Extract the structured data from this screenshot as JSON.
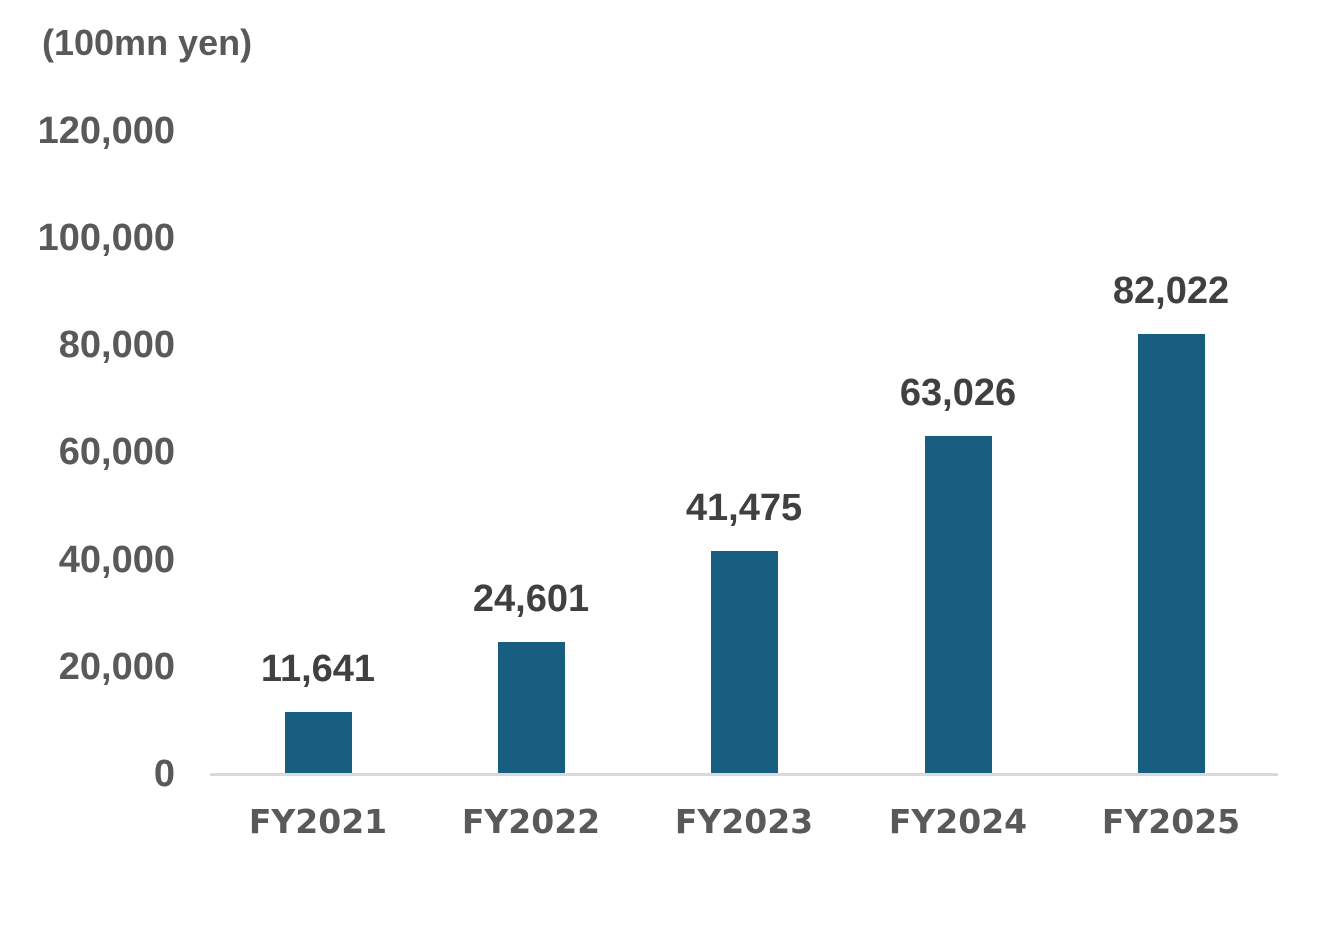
{
  "chart_data": {
    "type": "bar",
    "title": "",
    "unit_label": "(100mn yen)",
    "xlabel": "",
    "ylabel": "(100mn yen)",
    "categories": [
      "FY2021",
      "FY2022",
      "FY2023",
      "FY2024",
      "FY2025"
    ],
    "values": [
      11641,
      24601,
      41475,
      63026,
      82022
    ],
    "value_labels": [
      "11,641",
      "24,601",
      "41,475",
      "63,026",
      "82,022"
    ],
    "ylim": [
      0,
      120000
    ],
    "yticks": [
      "0",
      "20,000",
      "40,000",
      "60,000",
      "80,000",
      "100,000",
      "120,000"
    ],
    "grid": false,
    "legend": null,
    "bar_color": "#175e80"
  }
}
